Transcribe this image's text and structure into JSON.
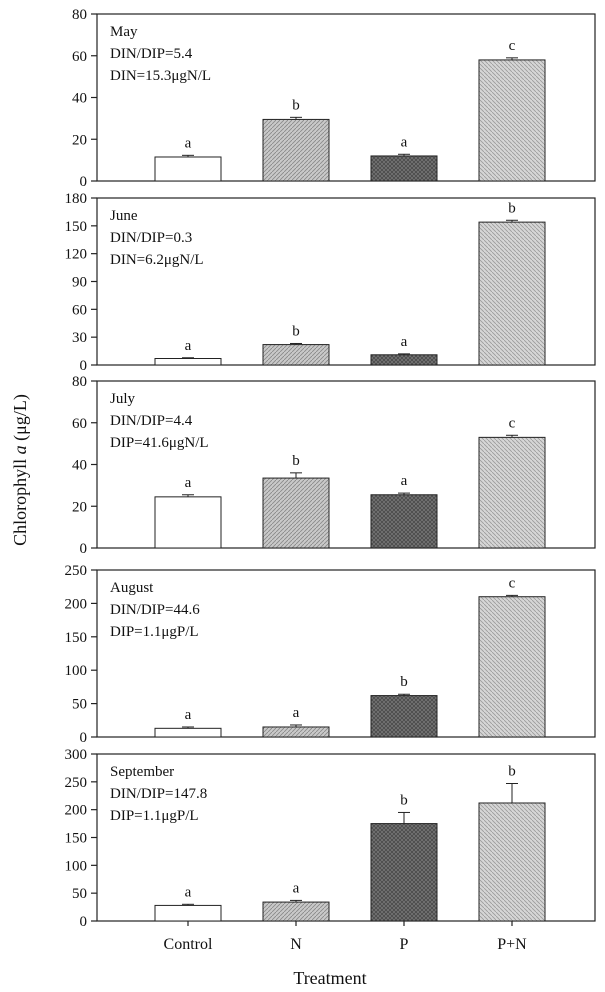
{
  "figure": {
    "ylabel_prefix": "Chlorophyll ",
    "ylabel_italic": "a",
    "ylabel_suffix": " (μg/L)",
    "xlabel": "Treatment",
    "categories": [
      "Control",
      "N",
      "P",
      "P+N"
    ]
  },
  "colors": {
    "control": "#ffffff",
    "n": "#c9c9c9",
    "p": "#777777",
    "pn": "#d6d6d6",
    "stroke": "#222222"
  },
  "chart_data": [
    {
      "type": "bar",
      "categories": [
        "Control",
        "N",
        "P",
        "P+N"
      ],
      "values": [
        11.5,
        29.5,
        12,
        58
      ],
      "errors": [
        0.8,
        1,
        0.8,
        1
      ],
      "letters": [
        "a",
        "b",
        "a",
        "c"
      ],
      "ylim": [
        0,
        80
      ],
      "yticks": [
        0,
        20,
        40,
        60,
        80
      ],
      "annotations": [
        "May",
        "DIN/DIP=5.4",
        "DIN=15.3μgN/L"
      ]
    },
    {
      "type": "bar",
      "categories": [
        "Control",
        "N",
        "P",
        "P+N"
      ],
      "values": [
        7,
        22,
        11,
        154
      ],
      "errors": [
        0.8,
        1.2,
        1,
        2
      ],
      "letters": [
        "a",
        "b",
        "a",
        "b"
      ],
      "ylim": [
        0,
        180
      ],
      "yticks": [
        0,
        30,
        60,
        90,
        120,
        150,
        180
      ],
      "annotations": [
        "June",
        "DIN/DIP=0.3",
        "DIN=6.2μgN/L"
      ]
    },
    {
      "type": "bar",
      "categories": [
        "Control",
        "N",
        "P",
        "P+N"
      ],
      "values": [
        24.5,
        33.5,
        25.5,
        53
      ],
      "errors": [
        1,
        2.5,
        0.8,
        1
      ],
      "letters": [
        "a",
        "b",
        "a",
        "c"
      ],
      "ylim": [
        0,
        80
      ],
      "yticks": [
        0,
        20,
        40,
        60,
        80
      ],
      "annotations": [
        "July",
        "DIN/DIP=4.4",
        "DIP=41.6μgN/L"
      ]
    },
    {
      "type": "bar",
      "categories": [
        "Control",
        "N",
        "P",
        "P+N"
      ],
      "values": [
        13,
        15,
        62,
        210
      ],
      "errors": [
        2,
        3,
        2,
        2
      ],
      "letters": [
        "a",
        "a",
        "b",
        "c"
      ],
      "ylim": [
        0,
        250
      ],
      "yticks": [
        0,
        50,
        100,
        150,
        200,
        250
      ],
      "annotations": [
        "August",
        "DIN/DIP=44.6",
        "DIP=1.1μgP/L"
      ]
    },
    {
      "type": "bar",
      "categories": [
        "Control",
        "N",
        "P",
        "P+N"
      ],
      "values": [
        28,
        34,
        175,
        212
      ],
      "errors": [
        2,
        3,
        20,
        35
      ],
      "letters": [
        "a",
        "a",
        "b",
        "b"
      ],
      "ylim": [
        0,
        300
      ],
      "yticks": [
        0,
        50,
        100,
        150,
        200,
        250,
        300
      ],
      "annotations": [
        "September",
        "DIN/DIP=147.8",
        "DIP=1.1μgP/L"
      ]
    }
  ]
}
